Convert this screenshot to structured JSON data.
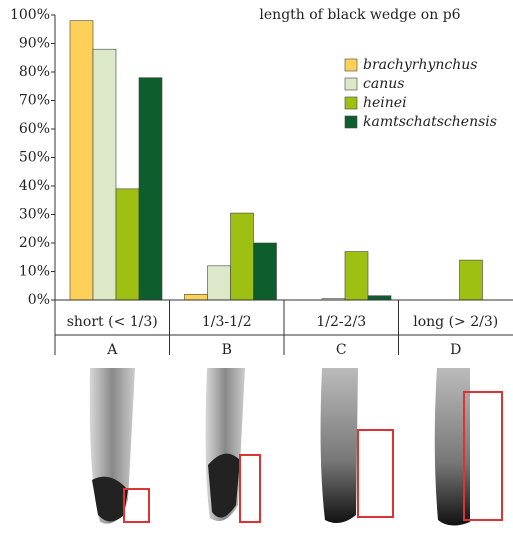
{
  "chart_data": {
    "type": "bar",
    "title": "length of black wedge on p6",
    "categories": [
      "short (< 1/3)",
      "1/3-1/2",
      "1/2-2/3",
      "long (> 2/3)"
    ],
    "category_letters": [
      "A",
      "B",
      "C",
      "D"
    ],
    "series": [
      {
        "name": "brachyrhynchus",
        "color": "#fdd05a",
        "values": [
          98,
          2,
          0,
          0
        ]
      },
      {
        "name": "canus",
        "color": "#dde8c8",
        "values": [
          88,
          12,
          0.5,
          0
        ]
      },
      {
        "name": "heinei",
        "color": "#9dc012",
        "values": [
          39,
          30.5,
          17,
          14
        ]
      },
      {
        "name": "kamtschatschensis",
        "color": "#0d5e2c",
        "values": [
          78,
          20,
          1.5,
          0
        ]
      }
    ],
    "ylim": [
      0,
      100
    ],
    "yticks": [
      {
        "value": 0,
        "label": "0%"
      },
      {
        "value": 10,
        "label": "10%"
      },
      {
        "value": 20,
        "label": "20%"
      },
      {
        "value": 30,
        "label": "30%"
      },
      {
        "value": 40,
        "label": "40%"
      },
      {
        "value": 50,
        "label": "50%"
      },
      {
        "value": 60,
        "label": "60%"
      },
      {
        "value": 70,
        "label": "70%"
      },
      {
        "value": 80,
        "label": "80%"
      },
      {
        "value": 90,
        "label": "90%"
      },
      {
        "value": 100,
        "label": "100%"
      }
    ],
    "legend": "upper right"
  }
}
